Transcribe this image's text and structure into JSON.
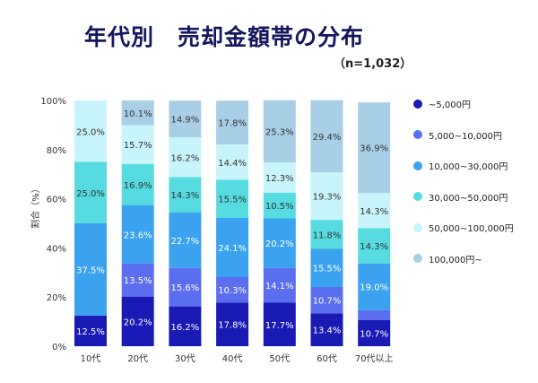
{
  "title": "年代別　売却金額帯の分布",
  "subtitle": "（n=1,032）",
  "chart_data": {
    "type": "bar",
    "stacked": true,
    "ylabel": "割合（%）",
    "ylim": [
      0,
      100
    ],
    "yticks": [
      "0%",
      "20%",
      "40%",
      "60%",
      "80%",
      "100%"
    ],
    "grid": false,
    "legend_position": "right",
    "categories": [
      "10代",
      "20代",
      "30代",
      "40代",
      "50代",
      "60代",
      "70代以上"
    ],
    "series": [
      {
        "name": "~5,000円",
        "color": "#1a1ab5",
        "values": [
          12.5,
          20.2,
          16.2,
          17.8,
          17.7,
          13.4,
          10.7
        ]
      },
      {
        "name": "5,000~10,000円",
        "color": "#5b6ef0",
        "values": [
          0,
          13.5,
          15.6,
          10.3,
          14.1,
          10.7,
          4.0
        ]
      },
      {
        "name": "10,000~30,000円",
        "color": "#3aa2ee",
        "values": [
          37.5,
          23.6,
          22.7,
          24.1,
          20.2,
          15.5,
          19.0
        ]
      },
      {
        "name": "30,000~50,000円",
        "color": "#55dbe0",
        "values": [
          25.0,
          16.9,
          14.3,
          15.5,
          10.5,
          11.8,
          14.3
        ]
      },
      {
        "name": "50,000~100,000円",
        "color": "#c8f5fc",
        "values": [
          25.0,
          15.7,
          16.2,
          14.4,
          12.3,
          19.3,
          14.3
        ]
      },
      {
        "name": "100,000円~",
        "color": "#a8cfe6",
        "values": [
          0,
          10.1,
          14.9,
          17.8,
          25.3,
          29.4,
          36.9
        ]
      }
    ],
    "labels": [
      [
        "12.5%",
        "",
        "37.5%",
        "25.0%",
        "25.0%",
        ""
      ],
      [
        "20.2%",
        "13.5%",
        "23.6%",
        "16.9%",
        "15.7%",
        "10.1%"
      ],
      [
        "16.2%",
        "15.6%",
        "22.7%",
        "14.3%",
        "16.2%",
        "14.9%"
      ],
      [
        "17.8%",
        "10.3%",
        "24.1%",
        "15.5%",
        "14.4%",
        "17.8%"
      ],
      [
        "17.7%",
        "14.1%",
        "20.2%",
        "10.5%",
        "12.3%",
        "25.3%"
      ],
      [
        "13.4%",
        "10.7%",
        "15.5%",
        "11.8%",
        "19.3%",
        "29.4%"
      ],
      [
        "10.7%",
        "",
        "19.0%",
        "14.3%",
        "14.3%",
        "36.9%"
      ]
    ]
  }
}
